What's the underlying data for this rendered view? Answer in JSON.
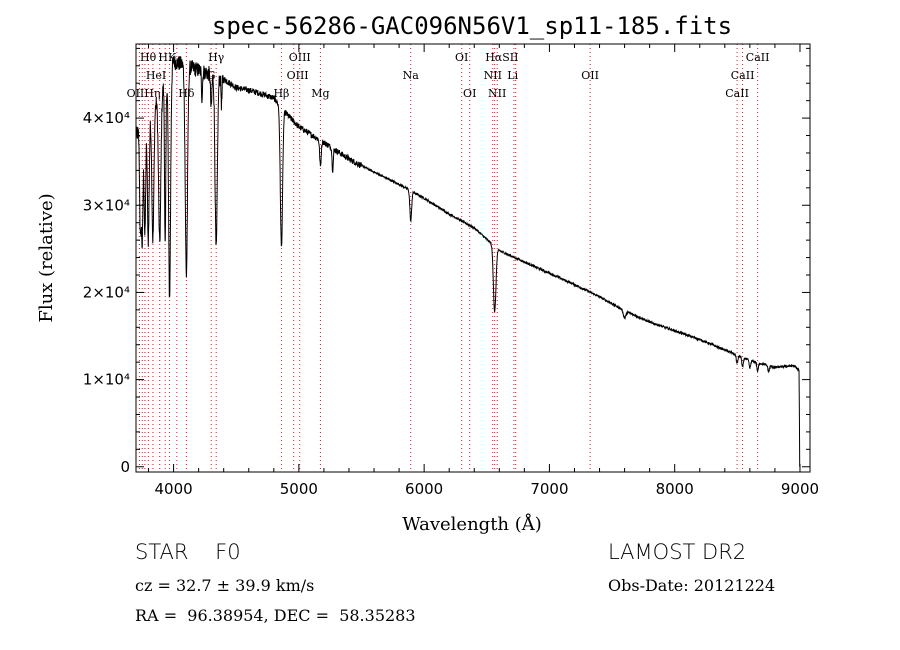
{
  "chart_data": {
    "type": "line",
    "title": "spec-56286-GAC096N56V1_sp11-185.fits",
    "xlabel": "Wavelength (Å)",
    "ylabel": "Flux (relative)",
    "xlim": [
      3700,
      9080
    ],
    "ylim": [
      -600,
      48500
    ],
    "xticks": [
      {
        "v": 4000,
        "label": "4000"
      },
      {
        "v": 5000,
        "label": "5000"
      },
      {
        "v": 6000,
        "label": "6000"
      },
      {
        "v": 7000,
        "label": "7000"
      },
      {
        "v": 8000,
        "label": "8000"
      },
      {
        "v": 9000,
        "label": "9000"
      }
    ],
    "yticks": [
      {
        "v": 0,
        "label": "0"
      },
      {
        "v": 10000,
        "label": "1×10⁴"
      },
      {
        "v": 20000,
        "label": "2×10⁴"
      },
      {
        "v": 30000,
        "label": "3×10⁴"
      },
      {
        "v": 40000,
        "label": "4×10⁴"
      }
    ],
    "continuum": [
      [
        3700,
        38000
      ],
      [
        3800,
        40000
      ],
      [
        3900,
        43000
      ],
      [
        4000,
        46500
      ],
      [
        4100,
        46000
      ],
      [
        4200,
        45500
      ],
      [
        4300,
        45000
      ],
      [
        4400,
        44500
      ],
      [
        4500,
        43500
      ],
      [
        4600,
        43200
      ],
      [
        4700,
        42800
      ],
      [
        4800,
        42300
      ],
      [
        4900,
        40500
      ],
      [
        5000,
        39000
      ],
      [
        5200,
        37200
      ],
      [
        5400,
        35300
      ],
      [
        5600,
        33800
      ],
      [
        5800,
        32400
      ],
      [
        6000,
        30800
      ],
      [
        6200,
        29000
      ],
      [
        6400,
        27400
      ],
      [
        6600,
        24800
      ],
      [
        6800,
        23500
      ],
      [
        7000,
        22200
      ],
      [
        7200,
        20900
      ],
      [
        7400,
        19500
      ],
      [
        7600,
        17900
      ],
      [
        7800,
        16600
      ],
      [
        8000,
        15600
      ],
      [
        8200,
        14600
      ],
      [
        8400,
        13400
      ],
      [
        8600,
        12200
      ],
      [
        8800,
        11400
      ],
      [
        8950,
        11600
      ],
      [
        9000,
        11000
      ]
    ],
    "absorption": [
      {
        "c": 3735,
        "w": 6,
        "d": 12000
      },
      {
        "c": 3750,
        "w": 6,
        "d": 13000
      },
      {
        "c": 3771,
        "w": 6,
        "d": 13000
      },
      {
        "c": 3798,
        "w": 7,
        "d": 14000
      },
      {
        "c": 3835,
        "w": 8,
        "d": 15000
      },
      {
        "c": 3889,
        "w": 9,
        "d": 17000
      },
      {
        "c": 3933,
        "w": 5,
        "d": 19000
      },
      {
        "c": 3968,
        "w": 8,
        "d": 26000
      },
      {
        "c": 4102,
        "w": 9,
        "d": 24000
      },
      {
        "c": 4227,
        "w": 4,
        "d": 3000
      },
      {
        "c": 4300,
        "w": 5,
        "d": 4000
      },
      {
        "c": 4340,
        "w": 9,
        "d": 20000
      },
      {
        "c": 4383,
        "w": 4,
        "d": 3000
      },
      {
        "c": 4861,
        "w": 9,
        "d": 16000
      },
      {
        "c": 5172,
        "w": 6,
        "d": 3000
      },
      {
        "c": 5270,
        "w": 5,
        "d": 2500
      },
      {
        "c": 5893,
        "w": 7,
        "d": 3500
      },
      {
        "c": 6563,
        "w": 10,
        "d": 7500
      },
      {
        "c": 7600,
        "w": 10,
        "d": 800
      },
      {
        "c": 8498,
        "w": 6,
        "d": 1000
      },
      {
        "c": 8542,
        "w": 6,
        "d": 1100
      },
      {
        "c": 8600,
        "w": 6,
        "d": 900
      },
      {
        "c": 8662,
        "w": 6,
        "d": 1000
      },
      {
        "c": 8750,
        "w": 6,
        "d": 700
      }
    ],
    "line_markers": [
      3727,
      3750,
      3771,
      3798,
      3835,
      3889,
      3933,
      3968,
      4026,
      4102,
      4300,
      4340,
      4861,
      4959,
      5007,
      5172,
      5893,
      6300,
      6364,
      6548,
      6563,
      6583,
      6717,
      6731,
      7325,
      8498,
      8542,
      8662
    ],
    "line_labels": [
      {
        "text": "Hθ",
        "x": 3797,
        "row": 0
      },
      {
        "text": "HK",
        "x": 3950,
        "row": 0
      },
      {
        "text": "Hγ",
        "x": 4340,
        "row": 0
      },
      {
        "text": "OIII",
        "x": 5007,
        "row": 0
      },
      {
        "text": "OI",
        "x": 6300,
        "row": 0
      },
      {
        "text": "HαSII",
        "x": 6620,
        "row": 0
      },
      {
        "text": "CaII",
        "x": 8662,
        "row": 0
      },
      {
        "text": "HeI",
        "x": 3860,
        "row": 1
      },
      {
        "text": "G",
        "x": 4300,
        "row": 1
      },
      {
        "text": "OIII",
        "x": 4990,
        "row": 1
      },
      {
        "text": "Na",
        "x": 5893,
        "row": 1
      },
      {
        "text": "NII",
        "x": 6548,
        "row": 1
      },
      {
        "text": "Li",
        "x": 6707,
        "row": 1
      },
      {
        "text": "OII",
        "x": 7325,
        "row": 1
      },
      {
        "text": "CaII",
        "x": 8542,
        "row": 1
      },
      {
        "text": "OIIHη",
        "x": 3760,
        "row": 2
      },
      {
        "text": "Hδ",
        "x": 4102,
        "row": 2
      },
      {
        "text": "Hβ",
        "x": 4861,
        "row": 2
      },
      {
        "text": "Mg",
        "x": 5172,
        "row": 2
      },
      {
        "text": "OI",
        "x": 6364,
        "row": 2
      },
      {
        "text": "NII",
        "x": 6583,
        "row": 2
      },
      {
        "text": "CaII",
        "x": 8498,
        "row": 2
      }
    ],
    "colors": {
      "spectrum": "#000000",
      "marker": "#d22020",
      "axis": "#000000"
    },
    "grid": false
  },
  "info": {
    "object_class": "STAR    F0",
    "survey": "LAMOST DR2",
    "cz": "cz = 32.7 ± 39.9 km/s",
    "obs_date": "Obs-Date: 20121224",
    "radec": "RA =  96.38954, DEC =  58.35283"
  }
}
